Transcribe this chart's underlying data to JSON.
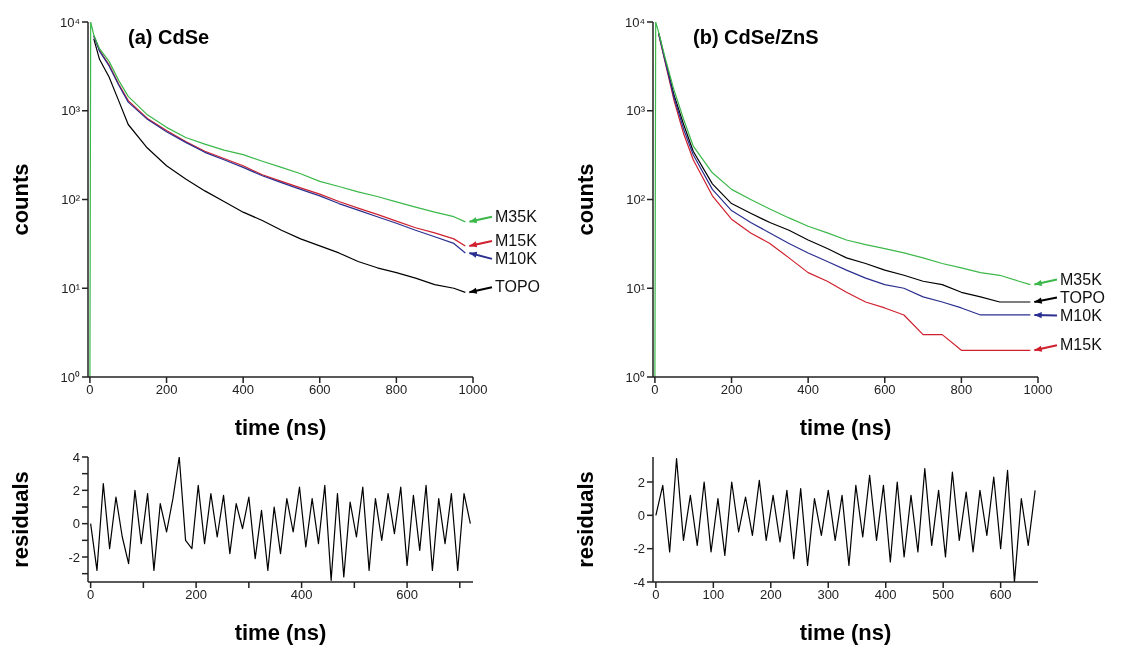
{
  "chart_data": [
    {
      "type": "line",
      "title": "(a) CdSe",
      "xlabel": "time  (ns)",
      "ylabel": "counts",
      "log": "y",
      "legend": "right",
      "xlim": [
        -5,
        1000
      ],
      "xticks": [
        0,
        200,
        400,
        600,
        800,
        1000
      ],
      "ylim": [
        1,
        10000
      ],
      "yticks": [
        {
          "value": 1,
          "label": "10⁰"
        },
        {
          "value": 10,
          "label": "10¹"
        },
        {
          "value": 100,
          "label": "10²"
        },
        {
          "value": 1000,
          "label": "10³"
        },
        {
          "value": 10000,
          "label": "10⁴"
        }
      ],
      "x": [
        10,
        25,
        50,
        75,
        100,
        150,
        200,
        250,
        300,
        350,
        400,
        450,
        500,
        550,
        600,
        650,
        700,
        750,
        800,
        850,
        900,
        950,
        980
      ],
      "series": [
        {
          "name": "TOPO",
          "color": "#000000",
          "values": [
            6500,
            3800,
            2400,
            1300,
            700,
            380,
            240,
            170,
            125,
            95,
            72,
            58,
            45,
            36,
            30,
            25,
            20,
            17,
            15,
            13,
            11,
            10,
            9
          ]
        },
        {
          "name": "M15K",
          "color": "#d0202e",
          "values": [
            7000,
            4800,
            3300,
            2000,
            1300,
            820,
            600,
            450,
            350,
            290,
            240,
            190,
            160,
            135,
            115,
            95,
            80,
            68,
            57,
            48,
            42,
            36,
            30
          ]
        },
        {
          "name": "M10K",
          "color": "#2b2f8f",
          "values": [
            7000,
            4700,
            3200,
            1950,
            1250,
            800,
            580,
            440,
            340,
            280,
            230,
            185,
            155,
            130,
            110,
            90,
            76,
            64,
            54,
            45,
            38,
            32,
            25
          ]
        },
        {
          "name": "M35K",
          "color": "#3cb84a",
          "x": [
            0,
            2,
            10,
            25,
            50,
            75,
            100,
            150,
            200,
            250,
            300,
            350,
            400,
            450,
            500,
            550,
            600,
            650,
            700,
            750,
            800,
            850,
            900,
            950,
            980
          ],
          "values": [
            1,
            10000,
            7200,
            5000,
            3600,
            2200,
            1450,
            900,
            650,
            500,
            420,
            360,
            320,
            270,
            230,
            195,
            160,
            140,
            122,
            108,
            94,
            82,
            72,
            64,
            56
          ]
        }
      ]
    },
    {
      "type": "line",
      "title": "(b) CdSe/ZnS",
      "xlabel": "time  (ns)",
      "ylabel": "counts",
      "log": "y",
      "legend": "right",
      "xlim": [
        -5,
        1000
      ],
      "xticks": [
        0,
        200,
        400,
        600,
        800,
        1000
      ],
      "ylim": [
        1,
        10000
      ],
      "yticks": [
        {
          "value": 1,
          "label": "10⁰"
        },
        {
          "value": 10,
          "label": "10¹"
        },
        {
          "value": 100,
          "label": "10²"
        },
        {
          "value": 1000,
          "label": "10³"
        },
        {
          "value": 10000,
          "label": "10⁴"
        }
      ],
      "x": [
        10,
        25,
        50,
        75,
        100,
        150,
        200,
        250,
        300,
        350,
        400,
        450,
        500,
        550,
        600,
        650,
        700,
        750,
        800,
        850,
        900,
        950,
        980
      ],
      "series": [
        {
          "name": "TOPO",
          "color": "#000000",
          "values": [
            7500,
            4000,
            1500,
            700,
            350,
            150,
            90,
            70,
            55,
            45,
            35,
            28,
            22,
            19,
            16,
            14,
            12,
            11,
            9,
            8,
            7,
            7,
            7
          ]
        },
        {
          "name": "M15K",
          "color": "#d0202e",
          "values": [
            7200,
            3800,
            1300,
            550,
            280,
            110,
            60,
            42,
            32,
            22,
            15,
            12,
            9,
            7,
            6,
            5,
            3,
            3,
            2,
            2,
            2,
            2,
            2
          ]
        },
        {
          "name": "M10K",
          "color": "#2b2f8f",
          "values": [
            7300,
            3900,
            1400,
            620,
            320,
            130,
            75,
            55,
            42,
            32,
            25,
            20,
            16,
            13,
            11,
            10,
            8,
            7,
            6,
            5,
            5,
            5,
            5
          ]
        },
        {
          "name": "M35K",
          "color": "#3cb84a",
          "x": [
            0,
            2,
            10,
            25,
            50,
            75,
            100,
            150,
            200,
            250,
            300,
            350,
            400,
            450,
            500,
            550,
            600,
            650,
            700,
            750,
            800,
            850,
            900,
            950,
            980
          ],
          "values": [
            1,
            10000,
            7600,
            4200,
            1700,
            800,
            400,
            200,
            130,
            100,
            78,
            62,
            50,
            42,
            35,
            31,
            28,
            25,
            22,
            19,
            17,
            15,
            14,
            12,
            11
          ]
        }
      ]
    },
    {
      "type": "line",
      "xlabel": "time  (ns)",
      "ylabel": "residuals",
      "xlim": [
        -5,
        725
      ],
      "xticks": [
        0,
        {
          "value": 100,
          "label": null
        },
        200,
        {
          "value": 300,
          "label": null
        },
        400,
        {
          "value": 500,
          "label": null
        },
        600,
        {
          "value": 700,
          "label": null
        }
      ],
      "ylim": [
        -3.5,
        4
      ],
      "yticks": [
        {
          "value": -3,
          "label": null
        },
        -2,
        {
          "value": -1,
          "label": null
        },
        0,
        {
          "value": 1,
          "label": null
        },
        2,
        {
          "value": 3,
          "label": null
        },
        4
      ],
      "x": [
        0,
        12,
        24,
        36,
        48,
        60,
        72,
        84,
        96,
        108,
        120,
        132,
        144,
        156,
        168,
        180,
        192,
        204,
        216,
        228,
        240,
        252,
        264,
        276,
        288,
        300,
        312,
        324,
        336,
        348,
        360,
        372,
        384,
        396,
        408,
        420,
        432,
        444,
        456,
        468,
        480,
        492,
        504,
        516,
        528,
        540,
        552,
        564,
        576,
        588,
        600,
        612,
        624,
        636,
        648,
        660,
        672,
        684,
        696,
        708,
        720
      ],
      "series": [
        {
          "color": "#000000",
          "values": [
            0,
            -2.8,
            2.4,
            -1.5,
            1.6,
            -0.8,
            -2.4,
            2,
            -1.2,
            1.8,
            -2.8,
            1.2,
            -0.5,
            1.5,
            4,
            -1,
            -1.5,
            2.3,
            -1.2,
            1.8,
            -0.8,
            1.7,
            -1.8,
            1.2,
            -0.3,
            1.6,
            -2.1,
            0.8,
            -2.8,
            1,
            -1.8,
            1.5,
            -0.5,
            2.2,
            -1.4,
            1.5,
            -1.2,
            2.3,
            -3.4,
            1.8,
            -3.2,
            1.3,
            -0.8,
            2.2,
            -2.8,
            1.5,
            -1,
            1.8,
            -0.6,
            2.2,
            -2.5,
            1.7,
            -1.6,
            2.3,
            -2.8,
            1.5,
            -1.2,
            1.8,
            -2.8,
            1.8,
            0
          ]
        }
      ]
    },
    {
      "type": "line",
      "xlabel": "time  (ns)",
      "ylabel": "residuals",
      "xlim": [
        -5,
        665
      ],
      "xticks": [
        0,
        100,
        200,
        300,
        400,
        500,
        600
      ],
      "ylim": [
        -4,
        3.5
      ],
      "yticks": [
        -4,
        -2,
        0,
        2
      ],
      "x": [
        0,
        12,
        24,
        36,
        48,
        60,
        72,
        84,
        96,
        108,
        120,
        132,
        144,
        156,
        168,
        180,
        192,
        204,
        216,
        228,
        240,
        252,
        264,
        276,
        288,
        300,
        312,
        324,
        336,
        348,
        360,
        372,
        384,
        396,
        408,
        420,
        432,
        444,
        456,
        468,
        480,
        492,
        504,
        516,
        528,
        540,
        552,
        564,
        576,
        588,
        600,
        612,
        624,
        636,
        648,
        660
      ],
      "series": [
        {
          "color": "#000000",
          "values": [
            0,
            1.8,
            -2.2,
            3.4,
            -1.5,
            1.2,
            -1.8,
            2,
            -2.2,
            1,
            -2.4,
            2,
            -1,
            1.1,
            -1.2,
            2.1,
            -1.5,
            1.2,
            -1.6,
            1.5,
            -2.6,
            1.6,
            -3,
            1,
            -1.2,
            1.5,
            -1.5,
            1.2,
            -3,
            1.8,
            -1.3,
            2.4,
            -1.5,
            1.8,
            -2.8,
            2,
            -2.5,
            1.2,
            -2.2,
            2.8,
            -1.8,
            1.5,
            -2.5,
            2.6,
            -1.5,
            1.4,
            -2.2,
            1.5,
            -1.2,
            2.3,
            -2,
            2.7,
            -4,
            1,
            -1.8,
            1.5
          ]
        }
      ]
    }
  ]
}
